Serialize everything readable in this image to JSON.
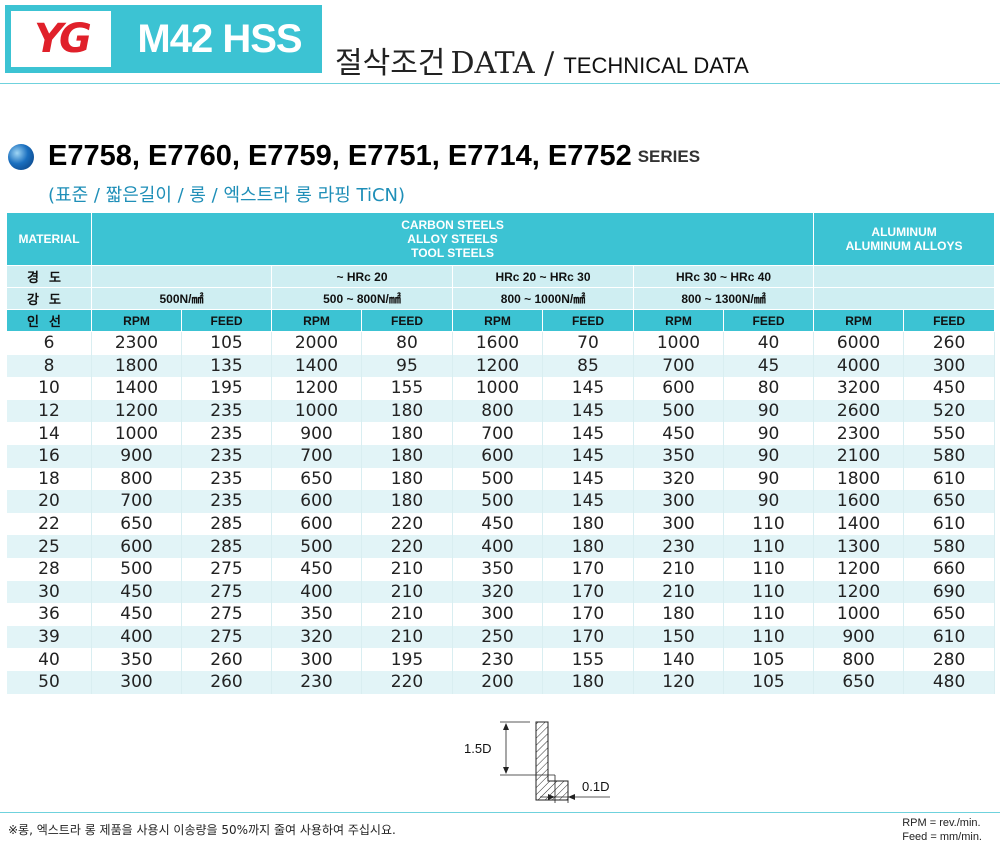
{
  "header": {
    "logo_text": "YG",
    "brand": "M42 HSS",
    "title_ko": "절삭조건",
    "title_data": "DATA /",
    "title_en": "TECHNICAL DATA",
    "accent_color": "#3cc3d3",
    "logo_color": "#e0202a"
  },
  "series": {
    "title": "E7758, E7760, E7759, E7751, E7714, E7752",
    "suffix": "SERIES",
    "subtitle": "(표준 / 짧은길이 / 롱 / 엑스트라 롱 라핑 TiCN)"
  },
  "table": {
    "material_label": "MATERIAL",
    "steels_line1": "CARBON STEELS",
    "steels_line2": "ALLOY STEELS",
    "steels_line3": "TOOL STEELS",
    "aluminum_line1": "ALUMINUM",
    "aluminum_line2": "ALUMINUM ALLOYS",
    "hardness_label": "경도",
    "strength_label": "강도",
    "diameter_label": "인선",
    "hardness": [
      "",
      "~ HRc 20",
      "HRc 20 ~ HRc 30",
      "HRc 30 ~ HRc 40"
    ],
    "strength": [
      "500N/㎟",
      "500 ~ 800N/㎟",
      "800 ~ 1000N/㎟",
      "800 ~ 1300N/㎟"
    ],
    "rpm_label": "RPM",
    "feed_label": "FEED",
    "rows": [
      [
        "6",
        "2300",
        "105",
        "2000",
        "80",
        "1600",
        "70",
        "1000",
        "40",
        "6000",
        "260"
      ],
      [
        "8",
        "1800",
        "135",
        "1400",
        "95",
        "1200",
        "85",
        "700",
        "45",
        "4000",
        "300"
      ],
      [
        "10",
        "1400",
        "195",
        "1200",
        "155",
        "1000",
        "145",
        "600",
        "80",
        "3200",
        "450"
      ],
      [
        "12",
        "1200",
        "235",
        "1000",
        "180",
        "800",
        "145",
        "500",
        "90",
        "2600",
        "520"
      ],
      [
        "14",
        "1000",
        "235",
        "900",
        "180",
        "700",
        "145",
        "450",
        "90",
        "2300",
        "550"
      ],
      [
        "16",
        "900",
        "235",
        "700",
        "180",
        "600",
        "145",
        "350",
        "90",
        "2100",
        "580"
      ],
      [
        "18",
        "800",
        "235",
        "650",
        "180",
        "500",
        "145",
        "320",
        "90",
        "1800",
        "610"
      ],
      [
        "20",
        "700",
        "235",
        "600",
        "180",
        "500",
        "145",
        "300",
        "90",
        "1600",
        "650"
      ],
      [
        "22",
        "650",
        "285",
        "600",
        "220",
        "450",
        "180",
        "300",
        "110",
        "1400",
        "610"
      ],
      [
        "25",
        "600",
        "285",
        "500",
        "220",
        "400",
        "180",
        "230",
        "110",
        "1300",
        "580"
      ],
      [
        "28",
        "500",
        "275",
        "450",
        "210",
        "350",
        "170",
        "210",
        "110",
        "1200",
        "660"
      ],
      [
        "30",
        "450",
        "275",
        "400",
        "210",
        "320",
        "170",
        "210",
        "110",
        "1200",
        "690"
      ],
      [
        "36",
        "450",
        "275",
        "350",
        "210",
        "300",
        "170",
        "180",
        "110",
        "1000",
        "650"
      ],
      [
        "39",
        "400",
        "275",
        "320",
        "210",
        "250",
        "170",
        "150",
        "110",
        "900",
        "610"
      ],
      [
        "40",
        "350",
        "260",
        "300",
        "195",
        "230",
        "155",
        "140",
        "105",
        "800",
        "280"
      ],
      [
        "50",
        "300",
        "260",
        "230",
        "220",
        "200",
        "180",
        "120",
        "105",
        "650",
        "480"
      ]
    ]
  },
  "diagram": {
    "depth_label": "1.5D",
    "width_label": "0.1D"
  },
  "footer": {
    "note": "※롱, 엑스트라 롱 제품을 사용시 이송량을 50%까지 줄여 사용하여 주십시요.",
    "rpm_unit": "RPM = rev./min.",
    "feed_unit": "Feed = mm/min."
  }
}
